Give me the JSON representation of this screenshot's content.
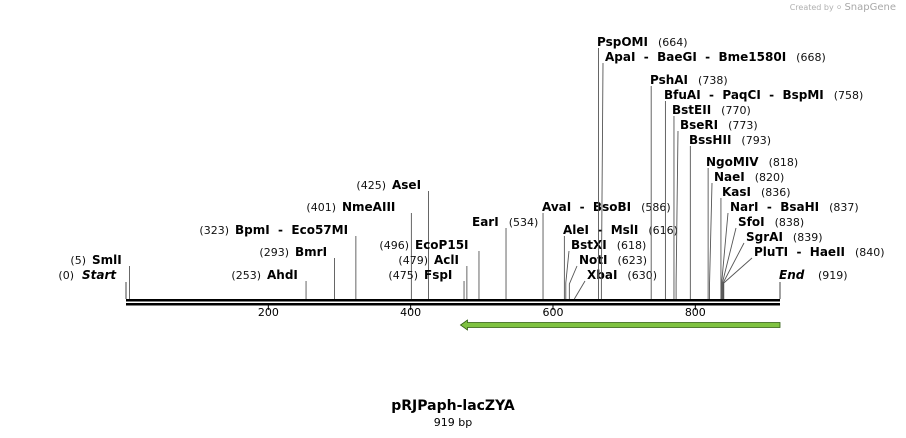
{
  "credit": {
    "prefix": "Created by",
    "brand": "SnapGene"
  },
  "plasmid": {
    "name": "pRJPaph-lacZYA",
    "size_label": "919 bp",
    "length": 919
  },
  "start_label": {
    "pos": "(0)",
    "name": "Start"
  },
  "end_label": {
    "name": "End",
    "pos": "(919)"
  },
  "ticks": [
    200,
    400,
    600,
    800
  ],
  "feature": {
    "name": "lacZYA arrow",
    "from": 919,
    "to": 470,
    "color": "#7fc241"
  },
  "sites": [
    {
      "name": "SmlI",
      "pos": 5,
      "pos_label": "(5)"
    },
    {
      "name": "AhdI",
      "pos": 253,
      "pos_label": "(253)"
    },
    {
      "name": "BmrI",
      "pos": 293,
      "pos_label": "(293)"
    },
    {
      "name": "BpmI  -  Eco57MI",
      "pos": 323,
      "pos_label": "(323)"
    },
    {
      "name": "NmeAIII",
      "pos": 401,
      "pos_label": "(401)"
    },
    {
      "name": "AseI",
      "pos": 425,
      "pos_label": "(425)"
    },
    {
      "name": "FspI",
      "pos": 475,
      "pos_label": "(475)"
    },
    {
      "name": "AclI",
      "pos": 479,
      "pos_label": "(479)"
    },
    {
      "name": "EcoP15I",
      "pos": 496,
      "pos_label": "(496)"
    },
    {
      "name": "EarI",
      "pos": 534,
      "pos_label": "(534)"
    },
    {
      "name": "AvaI  -  BsoBI",
      "pos": 586,
      "pos_label": "(586)"
    },
    {
      "name": "AleI  -  MslI",
      "pos": 616,
      "pos_label": "(616)"
    },
    {
      "name": "BstXI",
      "pos": 618,
      "pos_label": "(618)"
    },
    {
      "name": "NotI",
      "pos": 623,
      "pos_label": "(623)"
    },
    {
      "name": "XbaI",
      "pos": 630,
      "pos_label": "(630)"
    },
    {
      "name": "PspOMI",
      "pos": 664,
      "pos_label": "(664)"
    },
    {
      "name": "ApaI  -  BaeGI  -  Bme1580I",
      "pos": 668,
      "pos_label": "(668)"
    },
    {
      "name": "PshAI",
      "pos": 738,
      "pos_label": "(738)"
    },
    {
      "name": "BfuAI  -  PaqCI  -  BspMI",
      "pos": 758,
      "pos_label": "(758)"
    },
    {
      "name": "BstEII",
      "pos": 770,
      "pos_label": "(770)"
    },
    {
      "name": "BseRI",
      "pos": 773,
      "pos_label": "(773)"
    },
    {
      "name": "BssHII",
      "pos": 793,
      "pos_label": "(793)"
    },
    {
      "name": "NgoMIV",
      "pos": 818,
      "pos_label": "(818)"
    },
    {
      "name": "NaeI",
      "pos": 820,
      "pos_label": "(820)"
    },
    {
      "name": "KasI",
      "pos": 836,
      "pos_label": "(836)"
    },
    {
      "name": "NarI  -  BsaHI",
      "pos": 837,
      "pos_label": "(837)"
    },
    {
      "name": "SfoI",
      "pos": 838,
      "pos_label": "(838)"
    },
    {
      "name": "SgrAI",
      "pos": 839,
      "pos_label": "(839)"
    },
    {
      "name": "PluTI  -  HaeII",
      "pos": 840,
      "pos_label": "(840)"
    }
  ]
}
